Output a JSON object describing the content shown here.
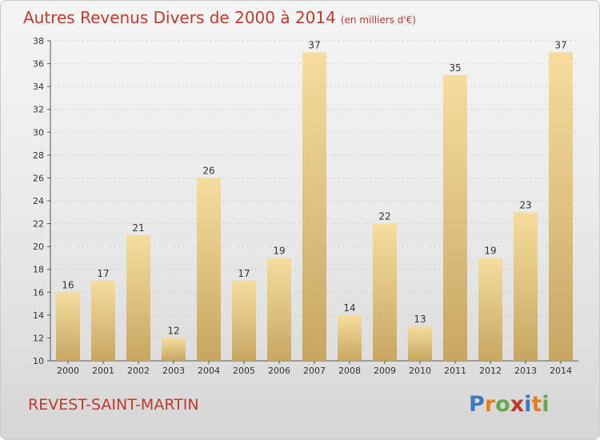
{
  "title": "Autres Revenus Divers de 2000 à 2014",
  "title_unit": "(en milliers d'€)",
  "town": "REVEST-SAINT-MARTIN",
  "logo": {
    "letters": [
      "P",
      "r",
      "o",
      "x",
      "i",
      "t",
      "i"
    ],
    "colors": [
      "#3a78c2",
      "#e67e22",
      "#6aa84f",
      "#c0392b",
      "#3a78c2",
      "#e67e22",
      "#6aa84f"
    ]
  },
  "colors": {
    "title": "#c0392b",
    "bar_light": "#f6dd9d",
    "bar_dark": "#c6a762",
    "axis": "#555555"
  },
  "chart_data": {
    "type": "bar",
    "categories": [
      "2000",
      "2001",
      "2002",
      "2003",
      "2004",
      "2005",
      "2006",
      "2007",
      "2008",
      "2009",
      "2010",
      "2011",
      "2012",
      "2013",
      "2014"
    ],
    "values": [
      16,
      17,
      21,
      12,
      26,
      17,
      19,
      37,
      14,
      22,
      13,
      35,
      19,
      23,
      37
    ],
    "ylim": [
      10,
      38
    ],
    "yticks": [
      10,
      12,
      14,
      16,
      18,
      20,
      22,
      24,
      26,
      28,
      30,
      32,
      34,
      36,
      38
    ],
    "grid": true,
    "title": "Autres Revenus Divers de 2000 à 2014",
    "xlabel": "",
    "ylabel": ""
  }
}
